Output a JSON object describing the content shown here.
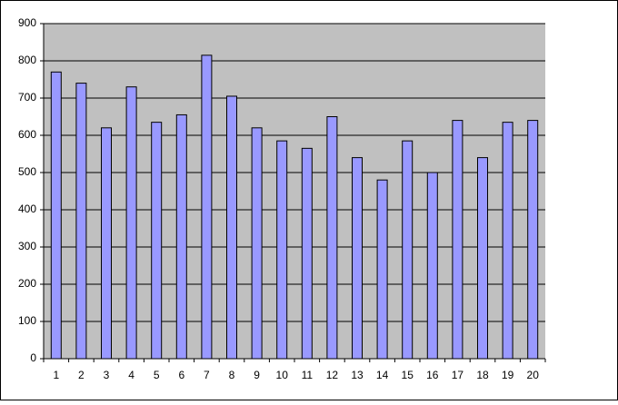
{
  "chart_data": {
    "type": "bar",
    "categories": [
      "1",
      "2",
      "3",
      "4",
      "5",
      "6",
      "7",
      "8",
      "9",
      "10",
      "11",
      "12",
      "13",
      "14",
      "15",
      "16",
      "17",
      "18",
      "19",
      "20"
    ],
    "values": [
      770,
      740,
      620,
      730,
      635,
      655,
      815,
      705,
      620,
      585,
      565,
      650,
      540,
      480,
      585,
      500,
      640,
      540,
      635,
      640
    ],
    "color": "#9999ff",
    "ylim": [
      0,
      900
    ],
    "yticks": [
      0,
      100,
      200,
      300,
      400,
      500,
      600,
      700,
      800,
      900
    ],
    "grid": true
  }
}
